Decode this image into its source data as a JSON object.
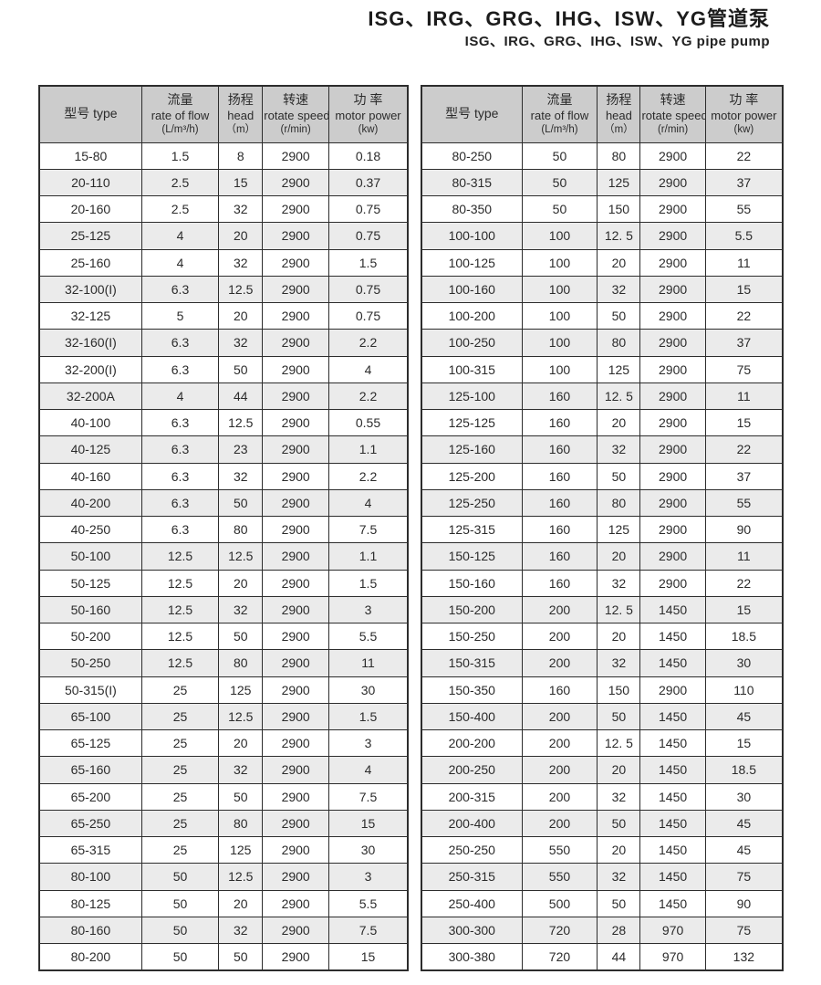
{
  "title": {
    "zh": "ISG、IRG、GRG、IHG、ISW、YG管道泵",
    "en": "ISG、IRG、GRG、IHG、ISW、YG pipe pump"
  },
  "headers": {
    "type": "型号  type",
    "flow_zh": "流量",
    "flow_en": "rate of flow",
    "flow_unit": "(L/m³/h)",
    "head_zh": "扬程",
    "head_en": "head",
    "head_unit": "（m）",
    "speed_zh": "转速",
    "speed_en": "rotate speed",
    "speed_unit": "(r/min)",
    "power_zh": "功 率",
    "power_en": "motor power",
    "power_unit": "(kw)"
  },
  "columns": [
    "type",
    "flow",
    "head",
    "speed",
    "power"
  ],
  "tables": {
    "left": {
      "rows": [
        [
          "15-80",
          "1.5",
          "8",
          "2900",
          "0.18"
        ],
        [
          "20-110",
          "2.5",
          "15",
          "2900",
          "0.37"
        ],
        [
          "20-160",
          "2.5",
          "32",
          "2900",
          "0.75"
        ],
        [
          "25-125",
          "4",
          "20",
          "2900",
          "0.75"
        ],
        [
          "25-160",
          "4",
          "32",
          "2900",
          "1.5"
        ],
        [
          "32-100(I)",
          "6.3",
          "12.5",
          "2900",
          "0.75"
        ],
        [
          "32-125",
          "5",
          "20",
          "2900",
          "0.75"
        ],
        [
          "32-160(I)",
          "6.3",
          "32",
          "2900",
          "2.2"
        ],
        [
          "32-200(I)",
          "6.3",
          "50",
          "2900",
          "4"
        ],
        [
          "32-200A",
          "4",
          "44",
          "2900",
          "2.2"
        ],
        [
          "40-100",
          "6.3",
          "12.5",
          "2900",
          "0.55"
        ],
        [
          "40-125",
          "6.3",
          "23",
          "2900",
          "1.1"
        ],
        [
          "40-160",
          "6.3",
          "32",
          "2900",
          "2.2"
        ],
        [
          "40-200",
          "6.3",
          "50",
          "2900",
          "4"
        ],
        [
          "40-250",
          "6.3",
          "80",
          "2900",
          "7.5"
        ],
        [
          "50-100",
          "12.5",
          "12.5",
          "2900",
          "1.1"
        ],
        [
          "50-125",
          "12.5",
          "20",
          "2900",
          "1.5"
        ],
        [
          "50-160",
          "12.5",
          "32",
          "2900",
          "3"
        ],
        [
          "50-200",
          "12.5",
          "50",
          "2900",
          "5.5"
        ],
        [
          "50-250",
          "12.5",
          "80",
          "2900",
          "11"
        ],
        [
          "50-315(I)",
          "25",
          "125",
          "2900",
          "30"
        ],
        [
          "65-100",
          "25",
          "12.5",
          "2900",
          "1.5"
        ],
        [
          "65-125",
          "25",
          "20",
          "2900",
          "3"
        ],
        [
          "65-160",
          "25",
          "32",
          "2900",
          "4"
        ],
        [
          "65-200",
          "25",
          "50",
          "2900",
          "7.5"
        ],
        [
          "65-250",
          "25",
          "80",
          "2900",
          "15"
        ],
        [
          "65-315",
          "25",
          "125",
          "2900",
          "30"
        ],
        [
          "80-100",
          "50",
          "12.5",
          "2900",
          "3"
        ],
        [
          "80-125",
          "50",
          "20",
          "2900",
          "5.5"
        ],
        [
          "80-160",
          "50",
          "32",
          "2900",
          "7.5"
        ],
        [
          "80-200",
          "50",
          "50",
          "2900",
          "15"
        ]
      ]
    },
    "right": {
      "rows": [
        [
          "80-250",
          "50",
          "80",
          "2900",
          "22"
        ],
        [
          "80-315",
          "50",
          "125",
          "2900",
          "37"
        ],
        [
          "80-350",
          "50",
          "150",
          "2900",
          "55"
        ],
        [
          "100-100",
          "100",
          "12. 5",
          "2900",
          "5.5"
        ],
        [
          "100-125",
          "100",
          "20",
          "2900",
          "11"
        ],
        [
          "100-160",
          "100",
          "32",
          "2900",
          "15"
        ],
        [
          "100-200",
          "100",
          "50",
          "2900",
          "22"
        ],
        [
          "100-250",
          "100",
          "80",
          "2900",
          "37"
        ],
        [
          "100-315",
          "100",
          "125",
          "2900",
          "75"
        ],
        [
          "125-100",
          "160",
          "12. 5",
          "2900",
          "11"
        ],
        [
          "125-125",
          "160",
          "20",
          "2900",
          "15"
        ],
        [
          "125-160",
          "160",
          "32",
          "2900",
          "22"
        ],
        [
          "125-200",
          "160",
          "50",
          "2900",
          "37"
        ],
        [
          "125-250",
          "160",
          "80",
          "2900",
          "55"
        ],
        [
          "125-315",
          "160",
          "125",
          "2900",
          "90"
        ],
        [
          "150-125",
          "160",
          "20",
          "2900",
          "11"
        ],
        [
          "150-160",
          "160",
          "32",
          "2900",
          "22"
        ],
        [
          "150-200",
          "200",
          "12. 5",
          "1450",
          "15"
        ],
        [
          "150-250",
          "200",
          "20",
          "1450",
          "18.5"
        ],
        [
          "150-315",
          "200",
          "32",
          "1450",
          "30"
        ],
        [
          "150-350",
          "160",
          "150",
          "2900",
          "110"
        ],
        [
          "150-400",
          "200",
          "50",
          "1450",
          "45"
        ],
        [
          "200-200",
          "200",
          "12. 5",
          "1450",
          "15"
        ],
        [
          "200-250",
          "200",
          "20",
          "1450",
          "18.5"
        ],
        [
          "200-315",
          "200",
          "32",
          "1450",
          "30"
        ],
        [
          "200-400",
          "200",
          "50",
          "1450",
          "45"
        ],
        [
          "250-250",
          "550",
          "20",
          "1450",
          "45"
        ],
        [
          "250-315",
          "550",
          "32",
          "1450",
          "75"
        ],
        [
          "250-400",
          "500",
          "50",
          "1450",
          "90"
        ],
        [
          "300-300",
          "720",
          "28",
          "970",
          "75"
        ],
        [
          "300-380",
          "720",
          "44",
          "970",
          "132"
        ]
      ]
    }
  },
  "colors": {
    "header_bg": "#cccccc",
    "row_alt_bg": "#ebebeb",
    "border": "#2d2d2d",
    "text": "#2b2b2b"
  }
}
